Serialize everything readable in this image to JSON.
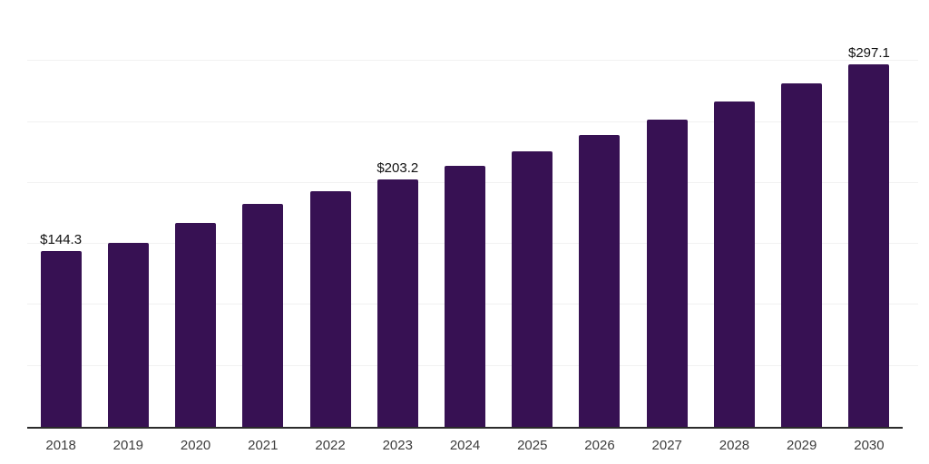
{
  "chart_data": {
    "type": "bar",
    "title": "",
    "xlabel": "",
    "ylabel": "",
    "categories": [
      "2018",
      "2019",
      "2020",
      "2021",
      "2022",
      "2023",
      "2024",
      "2025",
      "2026",
      "2027",
      "2028",
      "2029",
      "2030"
    ],
    "values": [
      144.3,
      150.8,
      167.0,
      183.0,
      193.1,
      203.2,
      214.2,
      226.0,
      239.2,
      252.2,
      266.5,
      281.5,
      297.1
    ],
    "bar_labels": [
      "$144.3",
      "",
      "",
      "",
      "",
      "$203.2",
      "",
      "",
      "",
      "",
      "",
      "",
      "$297.1"
    ],
    "ylim": [
      0,
      350
    ],
    "gridline_step": 50,
    "grid": "horizontal-only",
    "legend": "none",
    "y_tick_labels_visible": false,
    "colors": {
      "bar": "#371153",
      "axis_line": "#2B2B2B",
      "gridline": "#F1F1F1",
      "value_label": "#111111",
      "tick_label": "#3C3C3C",
      "background": "#FFFFFF"
    }
  }
}
